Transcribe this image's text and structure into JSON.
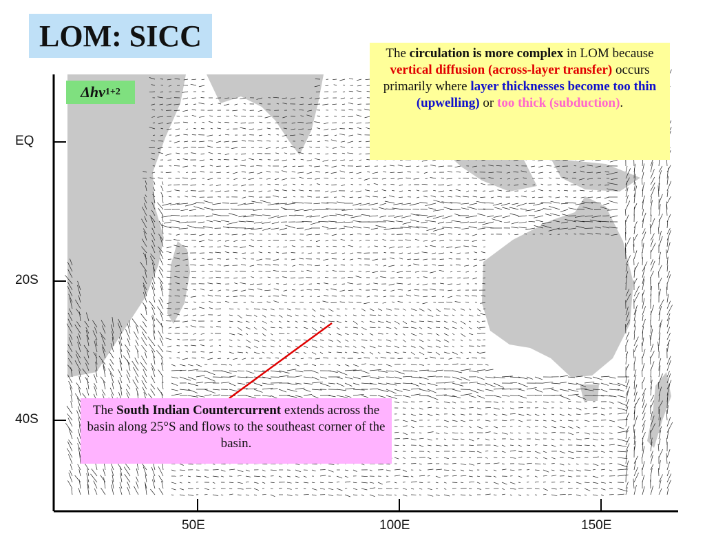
{
  "title": "LOM: SICC",
  "formula": {
    "delta": "Δ",
    "var": "hv",
    "sub": "1+2"
  },
  "note": {
    "p1": "The ",
    "p2": "circulation is more complex",
    "p3": " in LOM because ",
    "p4": "vertical diffusion (across-layer transfer)",
    "p5": " occurs primarily where ",
    "p6": "layer thicknesses become too thin (upwelling)",
    "p7": " or ",
    "p8": "too thick (subduction)",
    "p9": "."
  },
  "sicc": {
    "p1": "The ",
    "p2": "South Indian Countercurrent",
    "p3": " extends across the basin along 25°S and flows to the southeast corner of the basin."
  },
  "axes": {
    "y_ticks": [
      "EQ",
      "20S",
      "40S"
    ],
    "x_ticks": [
      "50E",
      "100E",
      "150E"
    ]
  },
  "colors": {
    "land": "#c8c8c8",
    "title_bg": "#bfe0f7",
    "formula_bg": "#7fe07f",
    "note_bg": "#ffff99",
    "sicc_bg": "#ffb3ff",
    "pointer": "#e00000"
  }
}
